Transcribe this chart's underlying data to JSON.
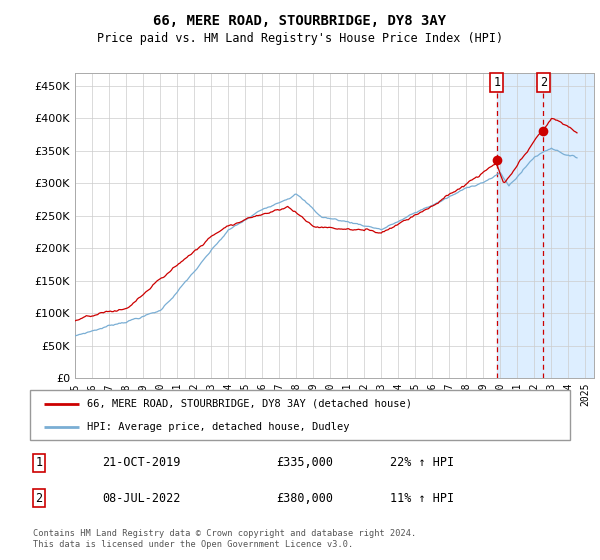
{
  "title": "66, MERE ROAD, STOURBRIDGE, DY8 3AY",
  "subtitle": "Price paid vs. HM Land Registry's House Price Index (HPI)",
  "ytick_vals": [
    0,
    50000,
    100000,
    150000,
    200000,
    250000,
    300000,
    350000,
    400000,
    450000
  ],
  "ylim": [
    0,
    470000
  ],
  "legend_label_red": "66, MERE ROAD, STOURBRIDGE, DY8 3AY (detached house)",
  "legend_label_blue": "HPI: Average price, detached house, Dudley",
  "transaction1_label": "1",
  "transaction1_date": "21-OCT-2019",
  "transaction1_price": "£335,000",
  "transaction1_hpi": "22% ↑ HPI",
  "transaction1_year": 2019.79,
  "transaction1_value": 335000,
  "transaction2_label": "2",
  "transaction2_date": "08-JUL-2022",
  "transaction2_price": "£380,000",
  "transaction2_hpi": "11% ↑ HPI",
  "transaction2_year": 2022.52,
  "transaction2_value": 380000,
  "footnote": "Contains HM Land Registry data © Crown copyright and database right 2024.\nThis data is licensed under the Open Government Licence v3.0.",
  "red_color": "#cc0000",
  "blue_color": "#7aaed4",
  "highlight_color": "#ddeeff",
  "xlim_start": 1995.0,
  "xlim_end": 2025.5,
  "xtick_years": [
    1995,
    1996,
    1997,
    1998,
    1999,
    2000,
    2001,
    2002,
    2003,
    2004,
    2005,
    2006,
    2007,
    2008,
    2009,
    2010,
    2011,
    2012,
    2013,
    2014,
    2015,
    2016,
    2017,
    2018,
    2019,
    2020,
    2021,
    2022,
    2023,
    2024,
    2025
  ]
}
